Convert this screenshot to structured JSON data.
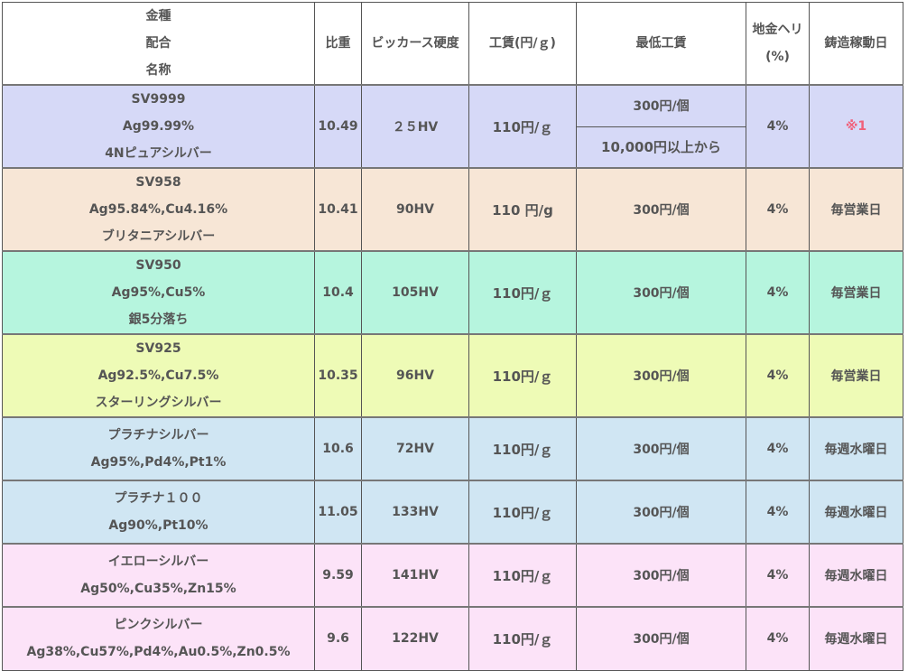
{
  "header": {
    "name_lines": [
      "金種",
      "配合",
      "名称"
    ],
    "gravity": "比重",
    "hardness": "ビッカース硬度",
    "fee": "工賃(円/ｇ)",
    "min_fee": "最低工賃",
    "loss_lines": [
      "地金ヘリ",
      "(%)"
    ],
    "casting_days": "鋳造稼動日"
  },
  "rows": [
    {
      "lines": [
        "SV9999",
        "Ag99.99%",
        "4Nピュアシルバー"
      ],
      "gravity": "10.49",
      "hardness": "２５HV",
      "fee": "110円/ｇ",
      "min_fee": "300円/個",
      "min_fee_note": "10,000円以上から",
      "loss": "4%",
      "days": "※1",
      "color": "#d6d9f7"
    },
    {
      "lines": [
        "SV958",
        "Ag95.84%,Cu4.16%",
        "ブリタニアシルバー"
      ],
      "gravity": "10.41",
      "hardness": "90HV",
      "fee": "110 円/g",
      "min_fee": "300円/個",
      "loss": "4%",
      "days": "毎営業日",
      "color": "#f7e6d6"
    },
    {
      "lines": [
        "SV950",
        "Ag95%,Cu5%",
        "銀5分落ち"
      ],
      "gravity": "10.4",
      "hardness": "105HV",
      "fee": "110円/ｇ",
      "min_fee": "300円/個",
      "loss": "4%",
      "days": "毎営業日",
      "color": "#b6f5de"
    },
    {
      "lines": [
        "SV925",
        "Ag92.5%,Cu7.5%",
        "スターリングシルバー"
      ],
      "gravity": "10.35",
      "hardness": "96HV",
      "fee": "110円/ｇ",
      "min_fee": "300円/個",
      "loss": "4%",
      "days": "毎営業日",
      "color": "#eefbb6"
    },
    {
      "lines": [
        "プラチナシルバー",
        "Ag95%,Pd4%,Pt1%"
      ],
      "gravity": "10.6",
      "hardness": "72HV",
      "fee": "110円/ｇ",
      "min_fee": "300円/個",
      "loss": "4%",
      "days": "毎週水曜日",
      "color": "#d0e6f3"
    },
    {
      "lines": [
        "プラチナ１００",
        "Ag90%,Pt10%"
      ],
      "gravity": "11.05",
      "hardness": "133HV",
      "fee": "110円/ｇ",
      "min_fee": "300円/個",
      "loss": "4%",
      "days": "毎週水曜日",
      "color": "#d0e6f3"
    },
    {
      "lines": [
        "イエローシルバー",
        "Ag50%,Cu35%,Zn15%"
      ],
      "gravity": "9.59",
      "hardness": "141HV",
      "fee": "110円/ｇ",
      "min_fee": "300円/個",
      "loss": "4%",
      "days": "毎週水曜日",
      "color": "#fce3f8"
    },
    {
      "lines": [
        "ピンクシルバー",
        "Ag38%,Cu57%,Pd4%,Au0.5%,Zn0.5%"
      ],
      "gravity": "9.6",
      "hardness": "122HV",
      "fee": "110円/ｇ",
      "min_fee": "300円/個",
      "loss": "4%",
      "days": "毎週水曜日",
      "color": "#fce3f8"
    }
  ]
}
